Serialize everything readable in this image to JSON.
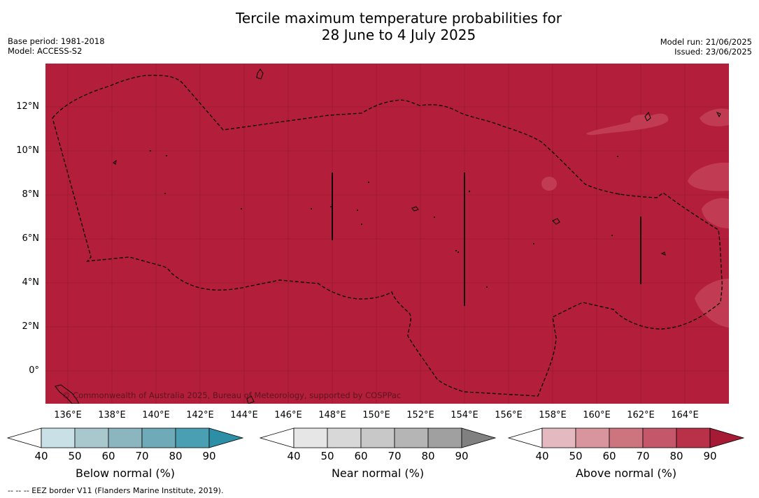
{
  "title_line1": "Tercile maximum temperature probabilities for",
  "title_line2": "28 June to 4 July 2025",
  "meta": {
    "base_period": "Base period: 1981-2018",
    "model": "Model: ACCESS-S2",
    "model_run": "Model run: 21/06/2025",
    "issued": "Issued: 23/06/2025"
  },
  "map": {
    "fill_color": "#b31e3a",
    "patch_color": "#c13c52",
    "copyright": "© Commonwealth of Australia 2025, Bureau of Meteorology, supported by COSPPac",
    "lat_labels": [
      "12°N",
      "10°N",
      "8°N",
      "6°N",
      "4°N",
      "2°N",
      "0°"
    ],
    "lon_labels": [
      "136°E",
      "138°E",
      "140°E",
      "142°E",
      "144°E",
      "146°E",
      "148°E",
      "150°E",
      "152°E",
      "154°E",
      "156°E",
      "158°E",
      "160°E",
      "162°E",
      "164°E"
    ]
  },
  "colorbars": [
    {
      "title": "Below normal (%)",
      "ticks": [
        "40",
        "50",
        "60",
        "70",
        "80",
        "90"
      ],
      "colors": [
        "#ffffff",
        "#c8e0e6",
        "#a9c8ce",
        "#8bb5bf",
        "#6eaab8",
        "#4aa0b2",
        "#2d8fa6"
      ]
    },
    {
      "title": "Near normal (%)",
      "ticks": [
        "40",
        "50",
        "60",
        "70",
        "80",
        "90"
      ],
      "colors": [
        "#ffffff",
        "#e6e6e6",
        "#d8d8d8",
        "#c8c8c8",
        "#b5b5b5",
        "#a0a0a0",
        "#808080"
      ]
    },
    {
      "title": "Above normal (%)",
      "ticks": [
        "40",
        "50",
        "60",
        "70",
        "80",
        "90"
      ],
      "colors": [
        "#ffffff",
        "#e4b9bf",
        "#d8959d",
        "#cc757f",
        "#c4586a",
        "#b93049",
        "#a71a35"
      ]
    }
  ],
  "footnote": "--  --  -- EEZ border V11 (Flanders Marine Institute, 2019)."
}
